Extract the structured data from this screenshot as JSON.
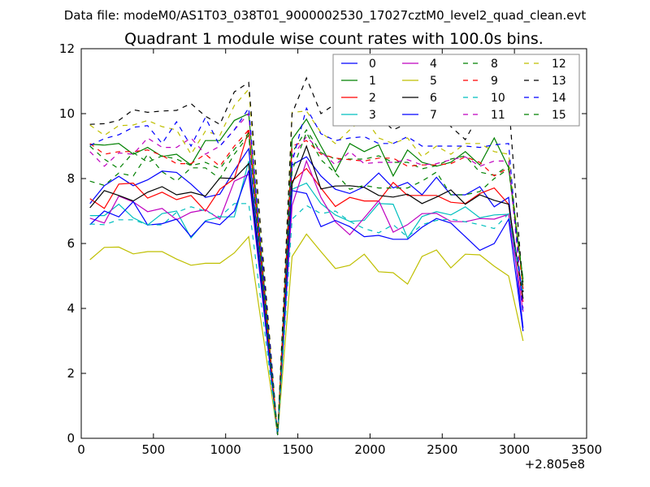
{
  "chart_data": {
    "type": "line",
    "suptitle": "Data file: modeM0/AS1T03_038T01_9000002530_17027cztM0_level2_quad_clean.evt",
    "title": "Quadrant 1 module wise count rates with 100.0s bins.",
    "xlabel": "",
    "ylabel": "",
    "x_offset_label": "+2.805e8",
    "xlim": [
      0,
      3500
    ],
    "ylim": [
      0,
      12
    ],
    "xticks": [
      0,
      500,
      1000,
      1500,
      2000,
      2500,
      3000,
      3500
    ],
    "yticks": [
      0,
      2,
      4,
      6,
      8,
      10,
      12
    ],
    "grid": false,
    "legend_placement": "top-right",
    "legend_columns": 4,
    "x": [
      60,
      160,
      260,
      360,
      460,
      560,
      660,
      760,
      860,
      960,
      1060,
      1160,
      1360,
      1460,
      1560,
      1660,
      1760,
      1860,
      1960,
      2060,
      2160,
      2260,
      2360,
      2460,
      2560,
      2660,
      2760,
      2860,
      2960,
      3060
    ],
    "series": [
      {
        "name": "0",
        "color": "#0000ff",
        "style": "solid",
        "values": [
          7.23,
          7.78,
          8.07,
          7.78,
          7.96,
          8.23,
          8.19,
          7.83,
          7.42,
          7.52,
          8.25,
          8.92,
          0.1,
          8.42,
          8.67,
          8.08,
          7.67,
          7.54,
          7.75,
          8.17,
          7.71,
          7.88,
          7.5,
          8.04,
          7.5,
          7.5,
          7.75,
          7.13,
          7.42,
          3.4
        ]
      },
      {
        "name": "1",
        "color": "#008000",
        "style": "solid",
        "values": [
          9.06,
          9.03,
          9.08,
          8.75,
          8.96,
          8.68,
          8.75,
          8.42,
          9.17,
          9.17,
          9.79,
          10.0,
          0.1,
          9.21,
          9.83,
          9.0,
          8.21,
          9.08,
          8.83,
          9.04,
          8.08,
          8.88,
          8.5,
          8.38,
          8.5,
          8.83,
          8.42,
          9.25,
          8.33,
          4.8
        ]
      },
      {
        "name": "2",
        "color": "#ff0000",
        "style": "solid",
        "values": [
          7.38,
          7.08,
          7.83,
          7.86,
          7.4,
          7.58,
          7.35,
          7.48,
          7.0,
          7.67,
          8.0,
          9.5,
          0.1,
          7.92,
          8.31,
          7.71,
          7.14,
          7.42,
          7.31,
          7.31,
          7.88,
          7.48,
          7.48,
          7.48,
          7.27,
          7.23,
          7.54,
          7.71,
          7.21,
          4.2
        ]
      },
      {
        "name": "3",
        "color": "#00bfbf",
        "style": "solid",
        "values": [
          6.86,
          6.86,
          7.21,
          6.79,
          6.57,
          6.92,
          7.0,
          6.17,
          6.7,
          6.82,
          6.82,
          8.54,
          0.1,
          7.67,
          7.86,
          7.23,
          6.88,
          6.68,
          6.71,
          7.23,
          7.21,
          6.17,
          6.83,
          6.98,
          6.88,
          7.13,
          6.79,
          6.88,
          6.9,
          4.5
        ]
      },
      {
        "name": "4",
        "color": "#bf00bf",
        "style": "solid",
        "values": [
          6.78,
          6.63,
          7.46,
          7.28,
          6.98,
          7.08,
          6.73,
          6.96,
          7.04,
          6.75,
          7.92,
          8.13,
          0.1,
          7.17,
          8.54,
          7.42,
          6.67,
          6.27,
          6.79,
          7.32,
          6.35,
          6.58,
          6.92,
          6.93,
          6.68,
          6.67,
          6.77,
          6.75,
          6.9,
          3.9
        ]
      },
      {
        "name": "5",
        "color": "#bfbf00",
        "style": "solid",
        "values": [
          5.5,
          5.88,
          5.89,
          5.68,
          5.75,
          5.75,
          5.52,
          5.33,
          5.39,
          5.39,
          5.71,
          6.21,
          0.1,
          5.6,
          6.29,
          5.75,
          5.23,
          5.33,
          5.67,
          5.13,
          5.1,
          4.75,
          5.6,
          5.8,
          5.25,
          5.67,
          5.65,
          5.3,
          5.0,
          3.0
        ]
      },
      {
        "name": "6",
        "color": "#000000",
        "style": "solid",
        "values": [
          7.1,
          7.63,
          7.48,
          7.31,
          7.58,
          7.75,
          7.5,
          7.58,
          7.46,
          8.02,
          8.0,
          8.46,
          0.1,
          7.83,
          9.0,
          7.68,
          7.77,
          7.78,
          7.73,
          7.48,
          7.43,
          7.52,
          7.23,
          7.43,
          7.65,
          7.21,
          7.5,
          7.33,
          7.21,
          4.3
        ]
      },
      {
        "name": "7",
        "color": "#0000ff",
        "style": "solid",
        "values": [
          6.58,
          7.0,
          6.82,
          7.29,
          6.57,
          6.61,
          6.75,
          6.21,
          6.68,
          6.58,
          7.0,
          8.25,
          0.1,
          7.63,
          7.54,
          6.52,
          6.71,
          6.52,
          6.21,
          6.25,
          6.13,
          6.13,
          6.5,
          6.77,
          6.63,
          6.21,
          5.79,
          6.0,
          6.75,
          3.3
        ]
      },
      {
        "name": "8",
        "color": "#008000",
        "style": "dashed",
        "values": [
          9.0,
          8.6,
          8.3,
          8.8,
          8.5,
          8.7,
          8.6,
          8.4,
          8.5,
          8.3,
          8.9,
          9.4,
          0.1,
          8.8,
          9.5,
          8.8,
          8.6,
          8.6,
          8.6,
          8.7,
          8.5,
          8.5,
          8.3,
          8.4,
          8.6,
          8.7,
          8.2,
          8.1,
          8.4,
          4.9
        ]
      },
      {
        "name": "9",
        "color": "#ff0000",
        "style": "dashed",
        "values": [
          9.08,
          8.75,
          8.83,
          8.83,
          8.88,
          8.71,
          8.46,
          8.46,
          8.75,
          8.38,
          9.0,
          9.5,
          0.1,
          9.0,
          9.17,
          8.75,
          8.63,
          8.58,
          8.54,
          8.63,
          8.63,
          8.38,
          8.42,
          8.42,
          8.46,
          8.67,
          8.5,
          8.08,
          8.33,
          4.6
        ]
      },
      {
        "name": "10",
        "color": "#00bfbf",
        "style": "dashed",
        "values": [
          6.6,
          6.58,
          6.73,
          6.73,
          6.58,
          6.57,
          6.96,
          7.13,
          7.0,
          6.82,
          7.23,
          7.23,
          0.1,
          6.75,
          7.17,
          6.92,
          7.0,
          6.68,
          6.46,
          6.33,
          6.58,
          6.2,
          6.58,
          6.71,
          6.75,
          6.67,
          6.58,
          6.46,
          6.92,
          4.4
        ]
      },
      {
        "name": "11",
        "color": "#bf00bf",
        "style": "dashed",
        "values": [
          8.83,
          8.38,
          8.79,
          8.75,
          9.25,
          8.96,
          8.96,
          9.25,
          8.75,
          9.0,
          9.5,
          10.0,
          0.1,
          8.67,
          9.29,
          8.83,
          8.42,
          8.83,
          8.46,
          8.5,
          8.5,
          8.58,
          8.42,
          8.46,
          8.58,
          8.67,
          8.38,
          8.54,
          8.54,
          4.0
        ]
      },
      {
        "name": "12",
        "color": "#bfbf00",
        "style": "dashed",
        "values": [
          9.65,
          9.33,
          9.63,
          9.65,
          9.79,
          9.6,
          9.5,
          8.75,
          9.46,
          9.33,
          10.25,
          10.75,
          0.1,
          10.04,
          10.08,
          9.42,
          9.08,
          9.5,
          9.88,
          9.25,
          9.08,
          9.25,
          8.67,
          9.0,
          8.75,
          9.08,
          9.08,
          8.83,
          8.75,
          4.7
        ]
      },
      {
        "name": "13",
        "color": "#000000",
        "style": "dashed",
        "values": [
          9.67,
          9.69,
          9.79,
          10.12,
          10.04,
          10.08,
          10.1,
          10.31,
          9.92,
          9.67,
          10.67,
          10.96,
          0.1,
          10.0,
          11.1,
          10.0,
          10.3,
          10.2,
          10.0,
          9.9,
          9.5,
          9.7,
          10.2,
          10.1,
          9.6,
          9.2,
          10.0,
          9.8,
          10.4,
          4.5
        ]
      },
      {
        "name": "14",
        "color": "#0000ff",
        "style": "dashed",
        "values": [
          9.02,
          9.23,
          9.35,
          9.58,
          9.63,
          9.08,
          9.75,
          9.0,
          9.88,
          9.0,
          9.5,
          10.17,
          0.1,
          8.5,
          10.17,
          9.38,
          9.17,
          9.25,
          9.29,
          9.08,
          9.08,
          9.29,
          9.0,
          9.0,
          9.0,
          9.0,
          8.96,
          9.04,
          9.08,
          3.8
        ]
      },
      {
        "name": "15",
        "color": "#008000",
        "style": "dashed",
        "values": [
          7.92,
          7.79,
          8.17,
          8.08,
          8.75,
          8.21,
          7.92,
          8.33,
          8.33,
          8.0,
          8.75,
          9.33,
          0.1,
          8.25,
          9.42,
          8.58,
          8.17,
          7.67,
          7.79,
          7.71,
          7.71,
          7.71,
          7.92,
          8.2,
          7.5,
          7.5,
          7.6,
          8.0,
          8.3,
          4.9
        ]
      }
    ]
  }
}
